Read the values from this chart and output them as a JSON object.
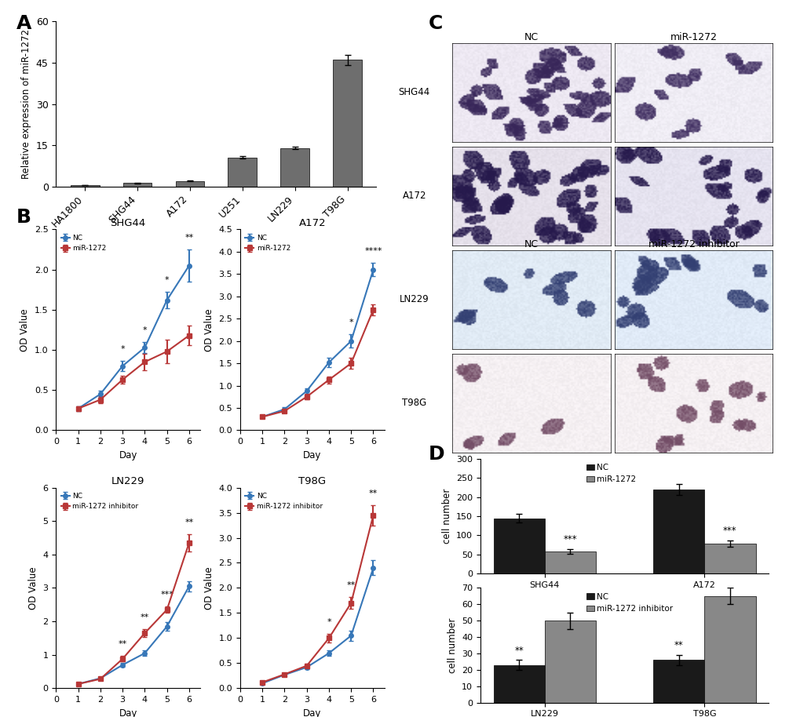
{
  "panel_A": {
    "categories": [
      "HA1800",
      "SHG44",
      "A172",
      "U251",
      "LN229",
      "T98G"
    ],
    "values": [
      0.5,
      1.2,
      2.0,
      10.5,
      14.0,
      46.0
    ],
    "errors": [
      0.1,
      0.15,
      0.2,
      0.4,
      0.5,
      1.8
    ],
    "bar_color": "#6e6e6e",
    "ylabel": "Relative expression of miR-1272",
    "ylim": [
      0,
      60
    ],
    "yticks": [
      0,
      15,
      30,
      45,
      60
    ]
  },
  "panel_B_SHG44": {
    "title": "SHG44",
    "days": [
      1,
      2,
      3,
      4,
      5,
      6
    ],
    "nc": [
      0.27,
      0.45,
      0.8,
      1.03,
      1.62,
      2.05
    ],
    "nc_err": [
      0.03,
      0.04,
      0.06,
      0.07,
      0.1,
      0.2
    ],
    "mir": [
      0.27,
      0.38,
      0.63,
      0.85,
      0.98,
      1.18
    ],
    "mir_err": [
      0.03,
      0.04,
      0.05,
      0.1,
      0.15,
      0.12
    ],
    "ylabel": "OD Value",
    "xlabel": "Day",
    "ylim": [
      0,
      2.5
    ],
    "yticks": [
      0,
      0.5,
      1.0,
      1.5,
      2.0,
      2.5
    ],
    "nc_label": "NC",
    "mir_label": "miR-1272",
    "sig_points": {
      "3": "*",
      "4": "*",
      "5": "*",
      "6": "**"
    }
  },
  "panel_B_A172": {
    "title": "A172",
    "days": [
      1,
      2,
      3,
      4,
      5,
      6
    ],
    "nc": [
      0.3,
      0.47,
      0.88,
      1.52,
      2.0,
      3.6
    ],
    "nc_err": [
      0.03,
      0.04,
      0.06,
      0.1,
      0.15,
      0.15
    ],
    "mir": [
      0.3,
      0.43,
      0.75,
      1.13,
      1.5,
      2.7
    ],
    "mir_err": [
      0.03,
      0.04,
      0.06,
      0.08,
      0.12,
      0.12
    ],
    "ylabel": "OD Value",
    "xlabel": "Day",
    "ylim": [
      0,
      4.5
    ],
    "yticks": [
      0,
      0.5,
      1.0,
      1.5,
      2.0,
      2.5,
      3.0,
      3.5,
      4.0,
      4.5
    ],
    "nc_label": "NC",
    "mir_label": "miR-1272",
    "sig_points": {
      "5": "*",
      "6": "****"
    }
  },
  "panel_B_LN229": {
    "title": "LN229",
    "days": [
      1,
      2,
      3,
      4,
      5,
      6
    ],
    "nc": [
      0.13,
      0.3,
      0.7,
      1.05,
      1.85,
      3.05
    ],
    "nc_err": [
      0.02,
      0.03,
      0.06,
      0.08,
      0.12,
      0.15
    ],
    "mir": [
      0.13,
      0.28,
      0.88,
      1.65,
      2.35,
      4.35
    ],
    "mir_err": [
      0.02,
      0.03,
      0.08,
      0.12,
      0.1,
      0.25
    ],
    "ylabel": "OD Value",
    "xlabel": "Day",
    "ylim": [
      0,
      6
    ],
    "yticks": [
      0,
      1,
      2,
      3,
      4,
      5,
      6
    ],
    "nc_label": "NC",
    "mir_label": "miR-1272 inhibitor",
    "sig_points": {
      "3": "**",
      "4": "**",
      "5": "***",
      "6": "**"
    }
  },
  "panel_B_T98G": {
    "title": "T98G",
    "days": [
      1,
      2,
      3,
      4,
      5,
      6
    ],
    "nc": [
      0.1,
      0.27,
      0.42,
      0.7,
      1.05,
      2.4
    ],
    "nc_err": [
      0.02,
      0.03,
      0.04,
      0.06,
      0.1,
      0.15
    ],
    "mir": [
      0.12,
      0.28,
      0.45,
      1.0,
      1.7,
      3.45
    ],
    "mir_err": [
      0.02,
      0.03,
      0.04,
      0.08,
      0.12,
      0.2
    ],
    "ylabel": "OD Value",
    "xlabel": "Day",
    "ylim": [
      0,
      4
    ],
    "yticks": [
      0,
      0.5,
      1.0,
      1.5,
      2.0,
      2.5,
      3.0,
      3.5,
      4.0
    ],
    "nc_label": "NC",
    "mir_label": "miR-1272 inhibitor",
    "sig_points": {
      "4": "*",
      "5": "**",
      "6": "**"
    }
  },
  "panel_C": {
    "rows": [
      "SHG44",
      "A172",
      "LN229",
      "T98G"
    ],
    "col1_label": "NC",
    "col2_label_top": "miR-1272",
    "col2_label_bottom": "miR-1272 inhibitor",
    "img_colors_nc": [
      "#e8e0f0",
      "#d8d0e8",
      "#dce8f0",
      "#f0ece8"
    ],
    "img_colors_mir": [
      "#f4f0f8",
      "#e8e4f4",
      "#e4ecf4",
      "#f4f0ec"
    ],
    "cell_density_nc": [
      0.7,
      0.85,
      0.3,
      0.25
    ],
    "cell_density_mir": [
      0.25,
      0.45,
      0.5,
      0.45
    ]
  },
  "panel_D_top": {
    "categories": [
      "SHG44",
      "A172"
    ],
    "nc_values": [
      145,
      220
    ],
    "nc_errors": [
      12,
      15
    ],
    "mir_values": [
      58,
      78
    ],
    "mir_errors": [
      6,
      8
    ],
    "ylabel": "cell number",
    "ylim": [
      0,
      300
    ],
    "yticks": [
      0,
      50,
      100,
      150,
      200,
      250,
      300
    ],
    "nc_label": "NC",
    "mir_label": "miR-1272",
    "sig": [
      "***",
      "***"
    ],
    "nc_color": "#1a1a1a",
    "mir_color": "#888888"
  },
  "panel_D_bottom": {
    "categories": [
      "LN229",
      "T98G"
    ],
    "nc_values": [
      23,
      26
    ],
    "nc_errors": [
      3,
      3
    ],
    "mir_values": [
      50,
      65
    ],
    "mir_errors": [
      5,
      5
    ],
    "ylabel": "cell number",
    "ylim": [
      0,
      70
    ],
    "yticks": [
      0,
      10,
      20,
      30,
      40,
      50,
      60,
      70
    ],
    "nc_label": "NC",
    "mir_label": "miR-1272 inhibitor",
    "sig": [
      "**",
      "**"
    ],
    "nc_color": "#1a1a1a",
    "mir_color": "#888888"
  },
  "colors": {
    "blue": "#3777B8",
    "red": "#B83737",
    "bar_gray": "#6e6e6e"
  },
  "background": "#ffffff"
}
